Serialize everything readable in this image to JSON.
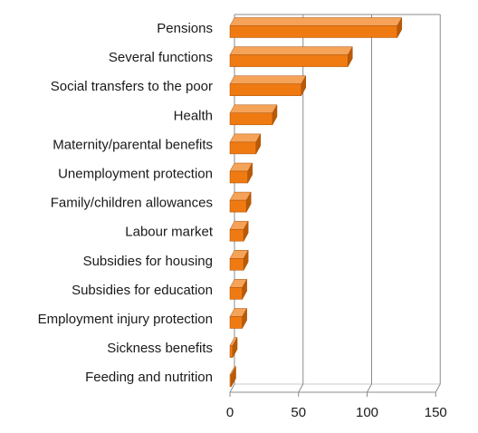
{
  "chart_data": {
    "type": "bar",
    "orientation": "horizontal",
    "style": "3d",
    "categories": [
      "Pensions",
      "Several functions",
      "Social transfers to the poor",
      "Health",
      "Maternity/parental benefits",
      "Unemployment protection",
      "Family/children allowances",
      "Labour market",
      "Subsidies for housing",
      "Subsidies for education",
      "Employment injury protection",
      "Sickness benefits",
      "Feeding and nutrition"
    ],
    "values": [
      122,
      86,
      52,
      31,
      19,
      13,
      12,
      10,
      10,
      9,
      9,
      2,
      1
    ],
    "xlim": [
      0,
      150
    ],
    "xticks": [
      0,
      50,
      100,
      150
    ],
    "grid": true,
    "legend": false,
    "bar_color": "#f07a12",
    "bar_top_color": "#f6a35a",
    "bar_side_color": "#b85a08",
    "grid_color": "#8c8c8c"
  }
}
